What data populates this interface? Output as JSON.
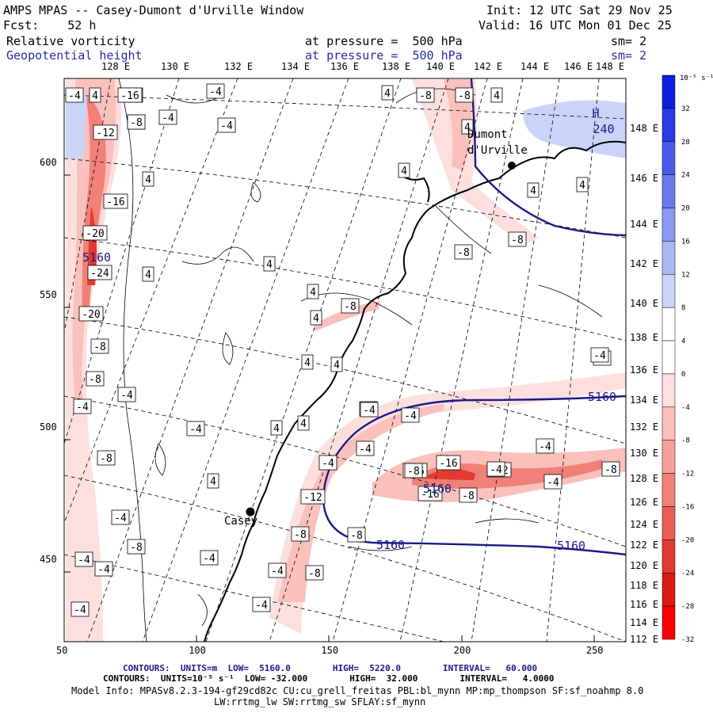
{
  "header": {
    "title": "AMPS MPAS -- Casey-Dumont d'Urville Window",
    "init": "Init: 12 UTC Sat 29 Nov 25",
    "fcst": "Fcst:    52 h",
    "valid": "Valid: 16 UTC Mon 01 Dec 25",
    "field1_name": "Relative vorticity",
    "field1_level": "at pressure =  500 hPa",
    "field1_sm": "sm= 2",
    "field2_name": "Geopotential height",
    "field2_level": "at pressure =  500 hPa",
    "field2_sm": "sm= 2"
  },
  "lon_top_labels": [
    "128 E",
    "130 E",
    "132 E",
    "134 E",
    "136 E",
    "138 E",
    "140 E",
    "142 E",
    "144 E",
    "146 E",
    "148 E"
  ],
  "lon_right_labels": [
    "148 E",
    "146 E",
    "144 E",
    "142 E",
    "140 E",
    "138 E",
    "136 E",
    "134 E",
    "132 E",
    "130 E",
    "128 E",
    "126 E",
    "124 E",
    "122 E",
    "120 E",
    "118 E",
    "116 E",
    "114 E",
    "112 E"
  ],
  "x_axis": {
    "labels": [
      "50",
      "100",
      "150",
      "200",
      "250"
    ],
    "values": [
      50,
      100,
      150,
      200,
      250
    ]
  },
  "y_axis": {
    "labels": [
      "600",
      "550",
      "500",
      "450"
    ],
    "values": [
      600,
      550,
      500,
      450
    ]
  },
  "stations": [
    {
      "name": "Dumont\nd'Urville",
      "marker": "station-dot"
    },
    {
      "name": "Casey",
      "marker": "station-dot"
    }
  ],
  "height_labels": [
    "5160",
    "5160",
    "5160",
    "5160",
    "H",
    "240",
    "5160"
  ],
  "vort_labels": [
    "-4",
    "4",
    "-16",
    "-4",
    "-4",
    "-4",
    "-8",
    "-12",
    "-8",
    "-16",
    "-16",
    "-20",
    "-24",
    "-20",
    "-8",
    "-8",
    "-4",
    "-4",
    "-8",
    "-4",
    "-8",
    "-4",
    "-4",
    "-4",
    "4",
    "4",
    "4",
    "4",
    "4",
    "4",
    "4",
    "4",
    "4",
    "4",
    "4",
    "4",
    "4",
    "4",
    "4",
    "4",
    "-4",
    "-4",
    "-8",
    "-8",
    "-8",
    "-8",
    "-8",
    "-4",
    "-4",
    "-4",
    "-4",
    "-12",
    "-8",
    "-16",
    "-16",
    "-16",
    "-8",
    "-12",
    "-8",
    "-4",
    "-4",
    "-4",
    "-8",
    "-8",
    "-4",
    "-4",
    "-4",
    "-8",
    "-4",
    "-4"
  ],
  "colorbar": {
    "unit_label": "10⁻⁵ s⁻¹",
    "ticks": [
      "32",
      "28",
      "24",
      "20",
      "16",
      "12",
      "8",
      "4",
      "0",
      "-4",
      "-8",
      "-12",
      "-16",
      "-20",
      "-24",
      "-28",
      "-32"
    ],
    "colors": [
      "#0a1fe0",
      "#2a3ae4",
      "#4a5ae8",
      "#6a7aec",
      "#8a9af0",
      "#aab7f4",
      "#cad4f8",
      "#ffffff",
      "#ffffff",
      "#fde0de",
      "#fac0bc",
      "#f6a09a",
      "#f08078",
      "#ea5e54",
      "#e23a30",
      "#dc1a10",
      "#ff0000"
    ]
  },
  "footer": {
    "line1_contours": "CONTOURS:  UNITS=m  LOW=  5160.0        HIGH=  5220.0        INTERVAL=   60.000",
    "line2_contours": "CONTOURS:  UNITS=10⁻⁵ s⁻¹  LOW= -32.000        HIGH=  32.000        INTERVAL=   4.0000",
    "line3_model": "Model Info: MPASv8.2.3-194-gf29cd82c CU:cu_grell_freitas PBL:bl_mynn MP:mp_thompson SF:sf_noahmp 8.0",
    "line4_model": "LW:rrtmg_lw SW:rrtmg_sw SFLAY:sf_mynn"
  }
}
